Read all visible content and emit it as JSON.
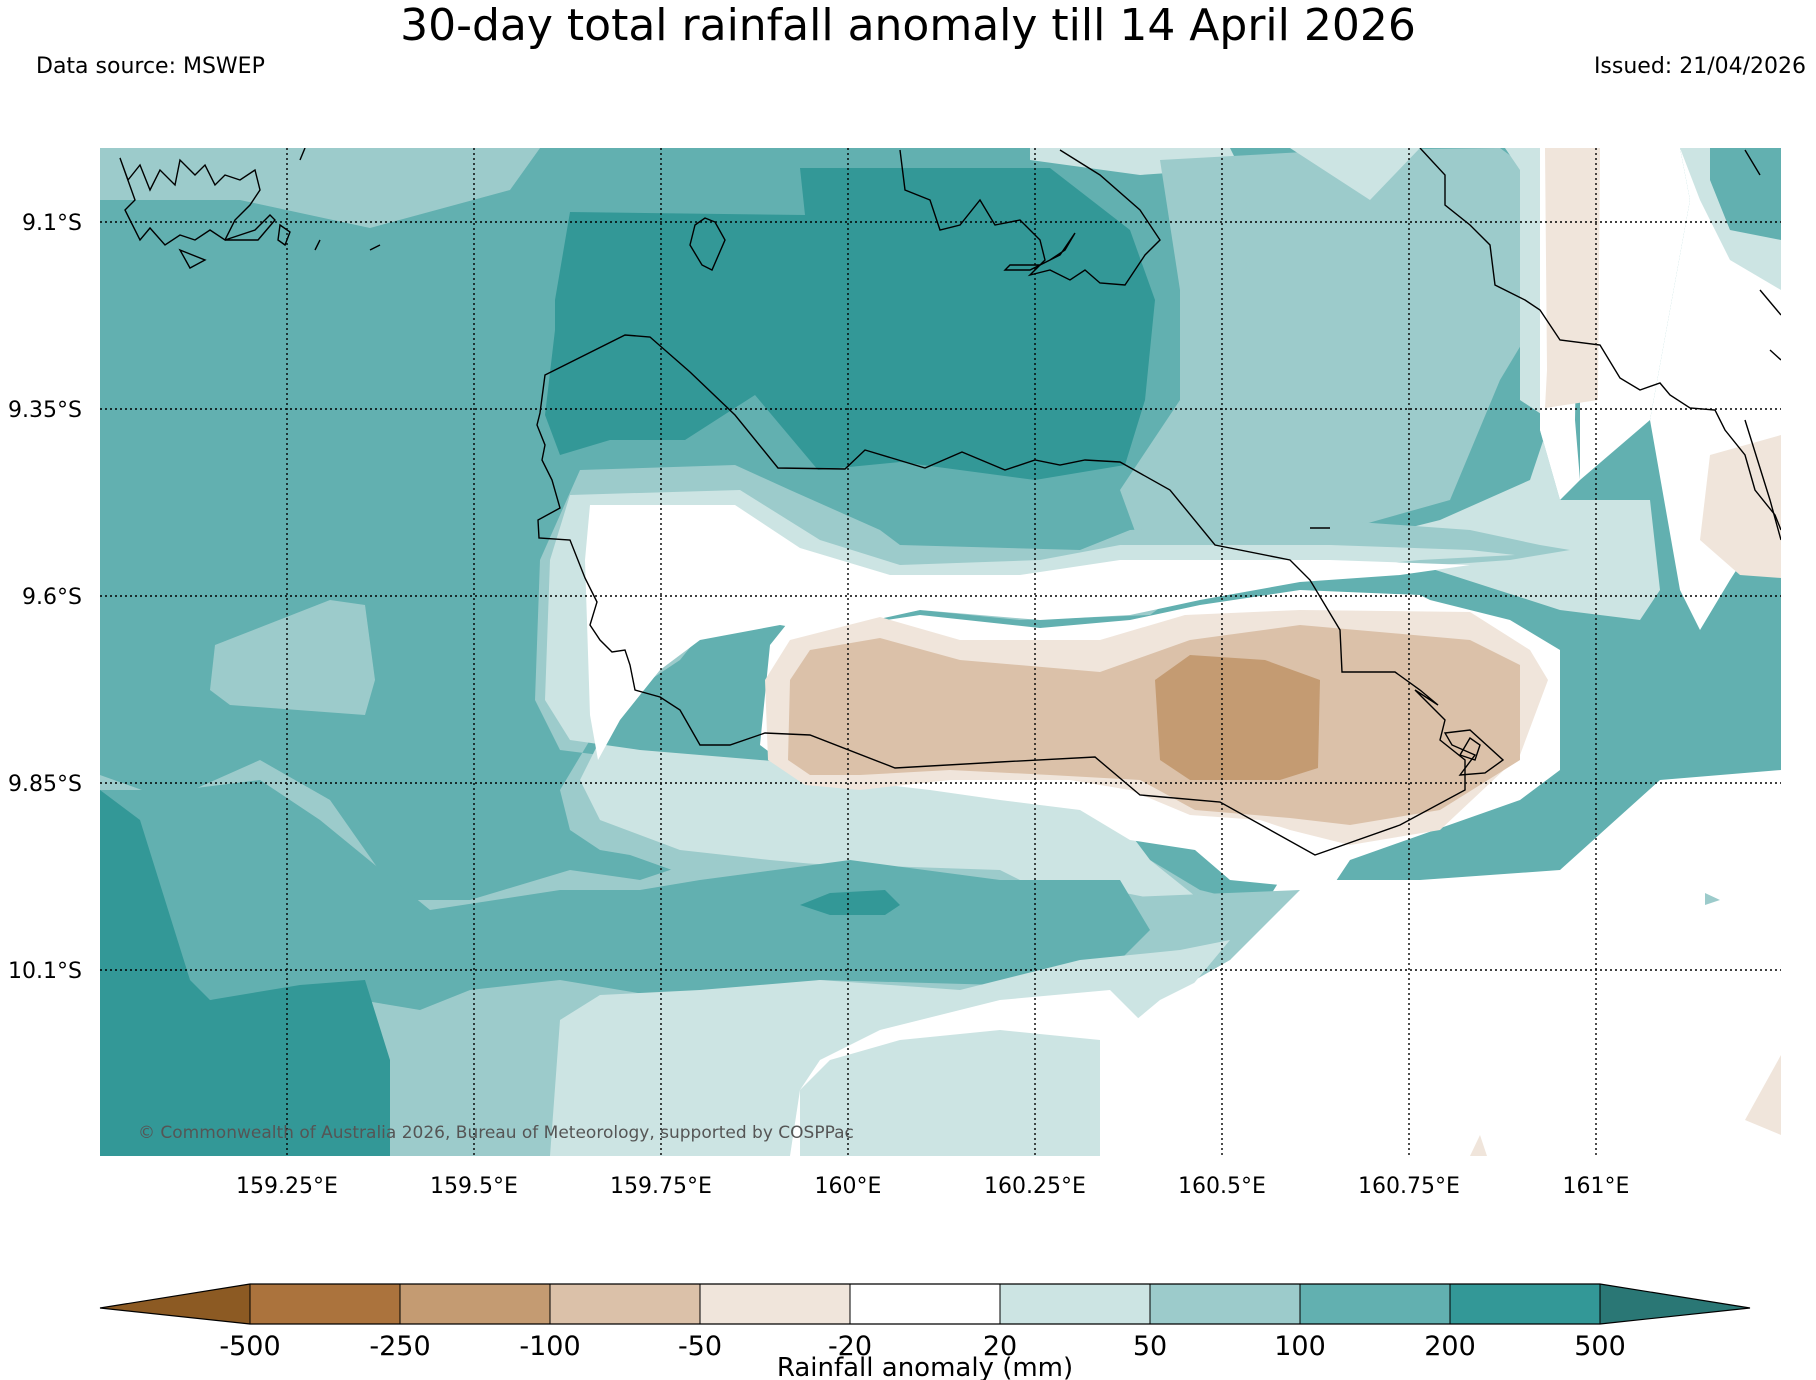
{
  "header": {
    "title": "30-day total rainfall anomaly till 14 April 2026",
    "source": "Data source: MSWEP",
    "issued": "Issued: 21/04/2026"
  },
  "map": {
    "credit": "© Commonwealth of Australia 2026, Bureau of Meteorology, supported by COSPPac",
    "lat_labels": [
      "9.1°S",
      "9.35°S",
      "9.6°S",
      "9.85°S",
      "10.1°S"
    ],
    "lon_labels": [
      "159.25°E",
      "159.5°E",
      "159.75°E",
      "160°E",
      "160.25°E",
      "160.5°E",
      "160.75°E",
      "161°E"
    ]
  },
  "colorbar": {
    "label": "Rainfall anomaly (mm)",
    "ticks": [
      "-500",
      "-250",
      "-100",
      "-50",
      "-20",
      "20",
      "50",
      "100",
      "200",
      "500"
    ],
    "colors": {
      "extend_low": "#8c5a23",
      "m500_m250": "#ab733d",
      "m250_m100": "#c49b72",
      "m100_m50": "#dbc1a9",
      "m50_m20": "#f0e5db",
      "m20_20": "#ffffff",
      "p20_50": "#cce4e3",
      "p50_100": "#9ccbcb",
      "p100_200": "#62b0b0",
      "p200_500": "#339897",
      "extend_high": "#2a7775"
    }
  }
}
